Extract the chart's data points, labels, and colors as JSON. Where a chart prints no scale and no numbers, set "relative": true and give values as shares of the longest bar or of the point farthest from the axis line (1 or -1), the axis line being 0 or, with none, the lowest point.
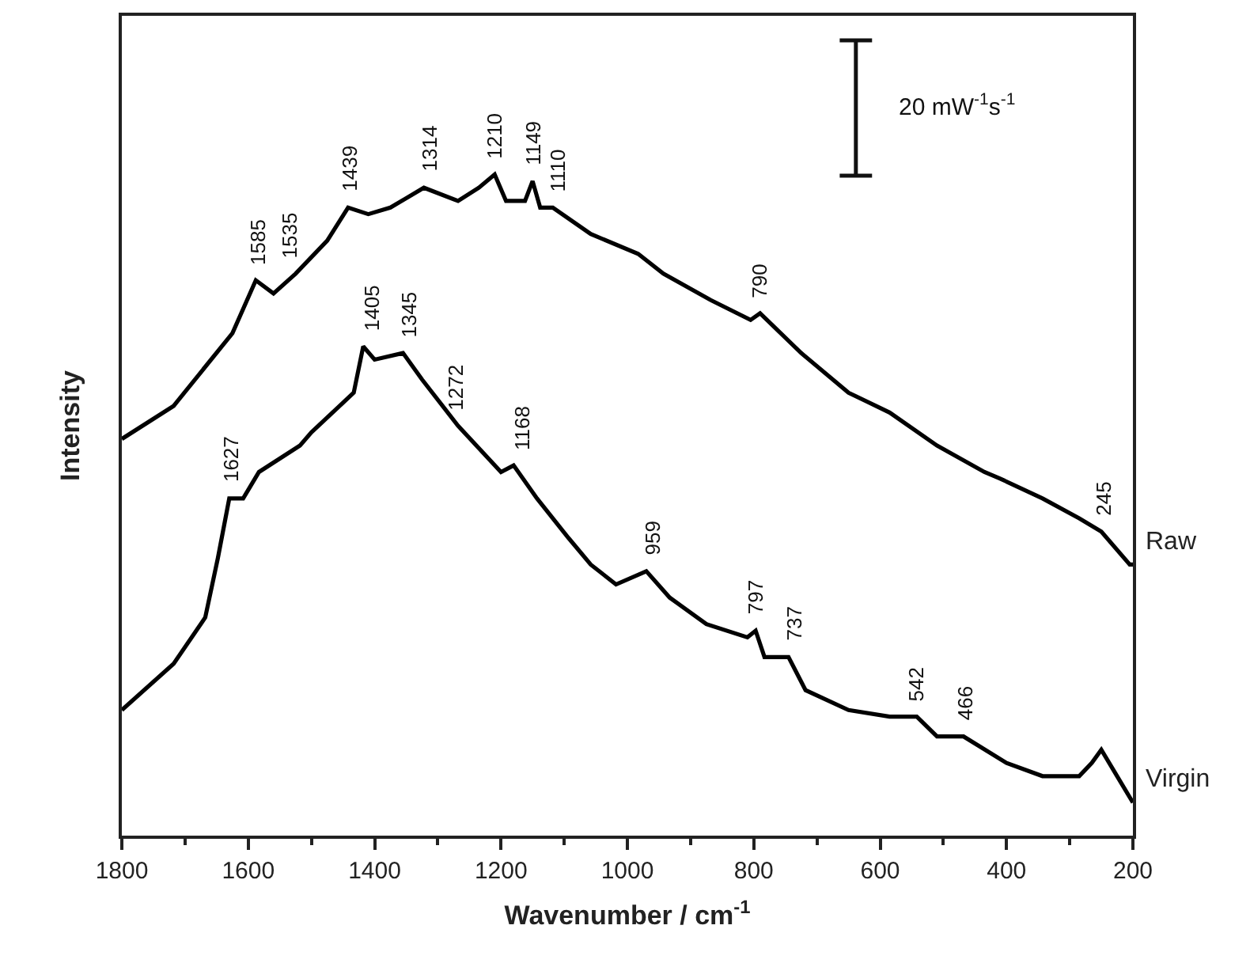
{
  "chart_data": {
    "type": "line",
    "relative": true,
    "xlabel": "Wavenumber / cm$^{-1}$",
    "ylabel": "Intensity",
    "xlim": [
      1800,
      200
    ],
    "xticks": [
      1800,
      1600,
      1400,
      1200,
      1000,
      800,
      600,
      400,
      200
    ],
    "tick_labels": "x",
    "legend": false,
    "marker": "none",
    "line_style": "solid",
    "series": [
      {
        "name": "Raw",
        "color": "#000000",
        "x": [
          1800,
          1718,
          1625,
          1588,
          1560,
          1525,
          1475,
          1442,
          1410,
          1375,
          1322,
          1268,
          1235,
          1210,
          1192,
          1162,
          1150,
          1138,
          1118,
          1058,
          983,
          943,
          868,
          805,
          790,
          725,
          650,
          585,
          510,
          435,
          410,
          343,
          285,
          250,
          205,
          200
        ],
        "values": [
          0.6,
          0.65,
          0.76,
          0.84,
          0.82,
          0.85,
          0.9,
          0.95,
          0.94,
          0.95,
          0.98,
          0.96,
          0.98,
          1.0,
          0.96,
          0.96,
          0.99,
          0.95,
          0.95,
          0.91,
          0.88,
          0.85,
          0.81,
          0.78,
          0.79,
          0.73,
          0.67,
          0.64,
          0.59,
          0.55,
          0.54,
          0.51,
          0.48,
          0.46,
          0.41,
          0.41
        ]
      },
      {
        "name": "Virgin",
        "color": "#000000",
        "x": [
          1800,
          1718,
          1668,
          1648,
          1630,
          1608,
          1583,
          1518,
          1500,
          1433,
          1418,
          1400,
          1355,
          1325,
          1268,
          1200,
          1180,
          1143,
          1093,
          1058,
          1018,
          970,
          933,
          875,
          810,
          797,
          783,
          745,
          718,
          650,
          585,
          542,
          510,
          468,
          400,
          343,
          285,
          265,
          250,
          225,
          200
        ],
        "values": [
          0.19,
          0.26,
          0.33,
          0.42,
          0.51,
          0.51,
          0.55,
          0.59,
          0.61,
          0.67,
          0.74,
          0.72,
          0.73,
          0.69,
          0.62,
          0.55,
          0.56,
          0.51,
          0.45,
          0.41,
          0.38,
          0.4,
          0.36,
          0.32,
          0.3,
          0.31,
          0.27,
          0.27,
          0.22,
          0.19,
          0.18,
          0.18,
          0.15,
          0.15,
          0.11,
          0.09,
          0.09,
          0.11,
          0.13,
          0.09,
          0.05
        ]
      }
    ],
    "annotations": [
      "20 mW$^{-1}$s$^{-1}$",
      {
        "text": "1585",
        "x": 1585,
        "y": 0.84
      },
      {
        "text": "1535",
        "x": 1535,
        "y": 0.85
      },
      {
        "text": "1439",
        "x": 1439,
        "y": 0.95
      },
      {
        "text": "1314",
        "x": 1314,
        "y": 0.98
      },
      {
        "text": "1210",
        "x": 1210,
        "y": 1.0
      },
      {
        "text": "1149",
        "x": 1149,
        "y": 0.99
      },
      {
        "text": "1110",
        "x": 1110,
        "y": 0.95
      },
      {
        "text": "790",
        "x": 790,
        "y": 0.79
      },
      {
        "text": "245",
        "x": 245,
        "y": 0.46
      },
      {
        "text": "1627",
        "x": 1627,
        "y": 0.51
      },
      {
        "text": "1405",
        "x": 1405,
        "y": 0.74
      },
      {
        "text": "1345",
        "x": 1345,
        "y": 0.73
      },
      {
        "text": "1272",
        "x": 1272,
        "y": 0.62
      },
      {
        "text": "1168",
        "x": 1168,
        "y": 0.56
      },
      {
        "text": "959",
        "x": 959,
        "y": 0.4
      },
      {
        "text": "797",
        "x": 797,
        "y": 0.31
      },
      {
        "text": "737",
        "x": 737,
        "y": 0.27
      },
      {
        "text": "542",
        "x": 542,
        "y": 0.18
      },
      {
        "text": "466",
        "x": 466,
        "y": 0.15
      }
    ]
  }
}
